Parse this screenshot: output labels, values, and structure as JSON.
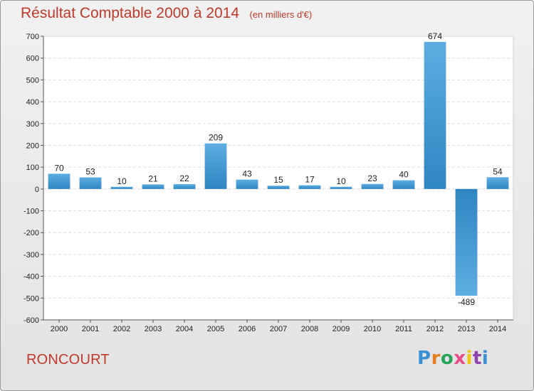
{
  "header": {
    "title": "Résultat Comptable 2000 à 2014",
    "subtitle": "(en milliers d'€)"
  },
  "footer": {
    "commune": "RONCOURT",
    "logo": "Proxiti"
  },
  "colors": {
    "title": "#c0392b",
    "bar_light": "#5dade2",
    "bar_dark": "#2e86c1"
  },
  "chart_data": {
    "type": "bar",
    "title": "Résultat Comptable 2000 à 2014",
    "subtitle": "(en milliers d'€)",
    "categories": [
      "2000",
      "2001",
      "2002",
      "2003",
      "2004",
      "2005",
      "2006",
      "2007",
      "2008",
      "2009",
      "2010",
      "2011",
      "2012",
      "2013",
      "2014"
    ],
    "values": [
      70,
      53,
      10,
      21,
      22,
      209,
      43,
      15,
      17,
      10,
      23,
      40,
      674,
      -489,
      54
    ],
    "ylim": [
      -600,
      700
    ],
    "yticks": [
      700,
      600,
      500,
      400,
      300,
      200,
      100,
      0,
      -100,
      -200,
      -300,
      -400,
      -500,
      -600
    ],
    "grid": true,
    "legend": "none"
  }
}
